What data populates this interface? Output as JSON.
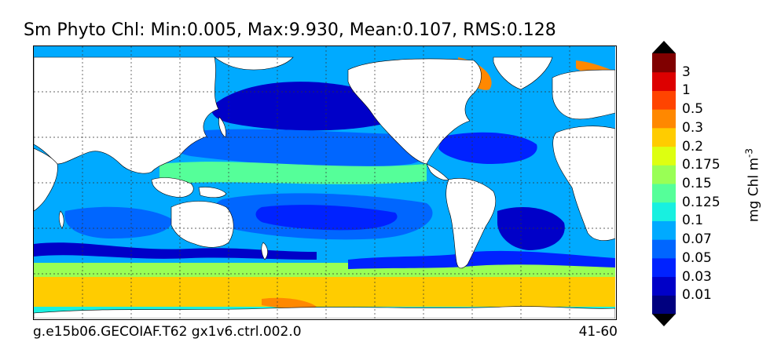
{
  "title": "Sm Phyto Chl: Min:0.005, Max:9.930, Mean:0.107, RMS:0.128",
  "caption_left": "g.e15b06.GECOIAF.T62 gx1v6.ctrl.002.0",
  "caption_right": "41-60",
  "colorbar": {
    "units": "mg Chl m",
    "units_exponent": "-3",
    "levels": [
      "0.01",
      "0.03",
      "0.05",
      "0.07",
      "0.1",
      "0.125",
      "0.15",
      "0.175",
      "0.2",
      "0.3",
      "0.5",
      "1",
      "3"
    ],
    "colors": [
      "#00007f",
      "#0000c8",
      "#0022ff",
      "#0066ff",
      "#00aaff",
      "#18f0e0",
      "#55ff99",
      "#99ff55",
      "#ddff11",
      "#ffcc00",
      "#ff8800",
      "#ff4400",
      "#dd0000",
      "#800000"
    ],
    "under_color": "#000000",
    "over_color": "#000000"
  },
  "map": {
    "land_color": "#ffffff",
    "ocean_background_color": "#00aaff",
    "grid": "dashed"
  }
}
